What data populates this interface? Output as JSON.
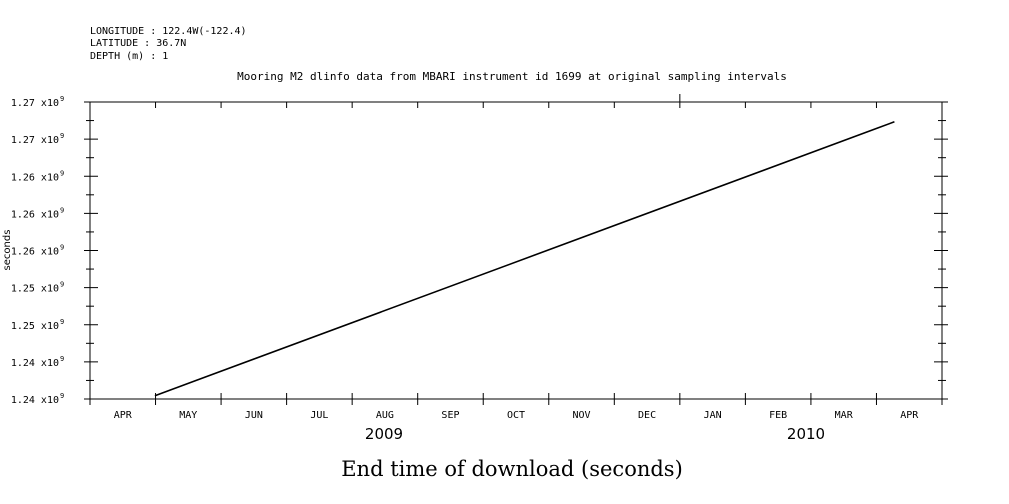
{
  "header": {
    "longitude": "LONGITUDE : 122.4W(-122.4)",
    "latitude": "LATITUDE : 36.7N",
    "depth": "DEPTH (m) : 1"
  },
  "chart_data": {
    "type": "line",
    "title": "Mooring M2 dlinfo data from MBARI instrument id 1699 at original sampling intervals",
    "xlabel": "End time of download (seconds)",
    "ylabel": "seconds",
    "x_tick_labels": [
      "APR",
      "MAY",
      "JUN",
      "JUL",
      "AUG",
      "SEP",
      "OCT",
      "NOV",
      "DEC",
      "JAN",
      "FEB",
      "MAR",
      "APR"
    ],
    "x_year_labels": [
      "2009",
      "2010"
    ],
    "y_tick_labels": [
      {
        "mantissa": "1.24 x10",
        "exp": "9"
      },
      {
        "mantissa": "1.24 x10",
        "exp": "9"
      },
      {
        "mantissa": "1.25 x10",
        "exp": "9"
      },
      {
        "mantissa": "1.25 x10",
        "exp": "9"
      },
      {
        "mantissa": "1.26 x10",
        "exp": "9"
      },
      {
        "mantissa": "1.26 x10",
        "exp": "9"
      },
      {
        "mantissa": "1.26 x10",
        "exp": "9"
      },
      {
        "mantissa": "1.27 x10",
        "exp": "9"
      },
      {
        "mantissa": "1.27 x10",
        "exp": "9"
      }
    ],
    "x_range": [
      "2009-04-01",
      "2010-04-30"
    ],
    "ylim": [
      1236400000,
      1272400000
    ],
    "series": [
      {
        "points": [
          {
            "x": "2009-05-01",
            "y": 1236800000
          },
          {
            "x": "2010-04-08",
            "y": 1270000000
          }
        ]
      }
    ],
    "grid": false,
    "line_color": "#000000"
  }
}
